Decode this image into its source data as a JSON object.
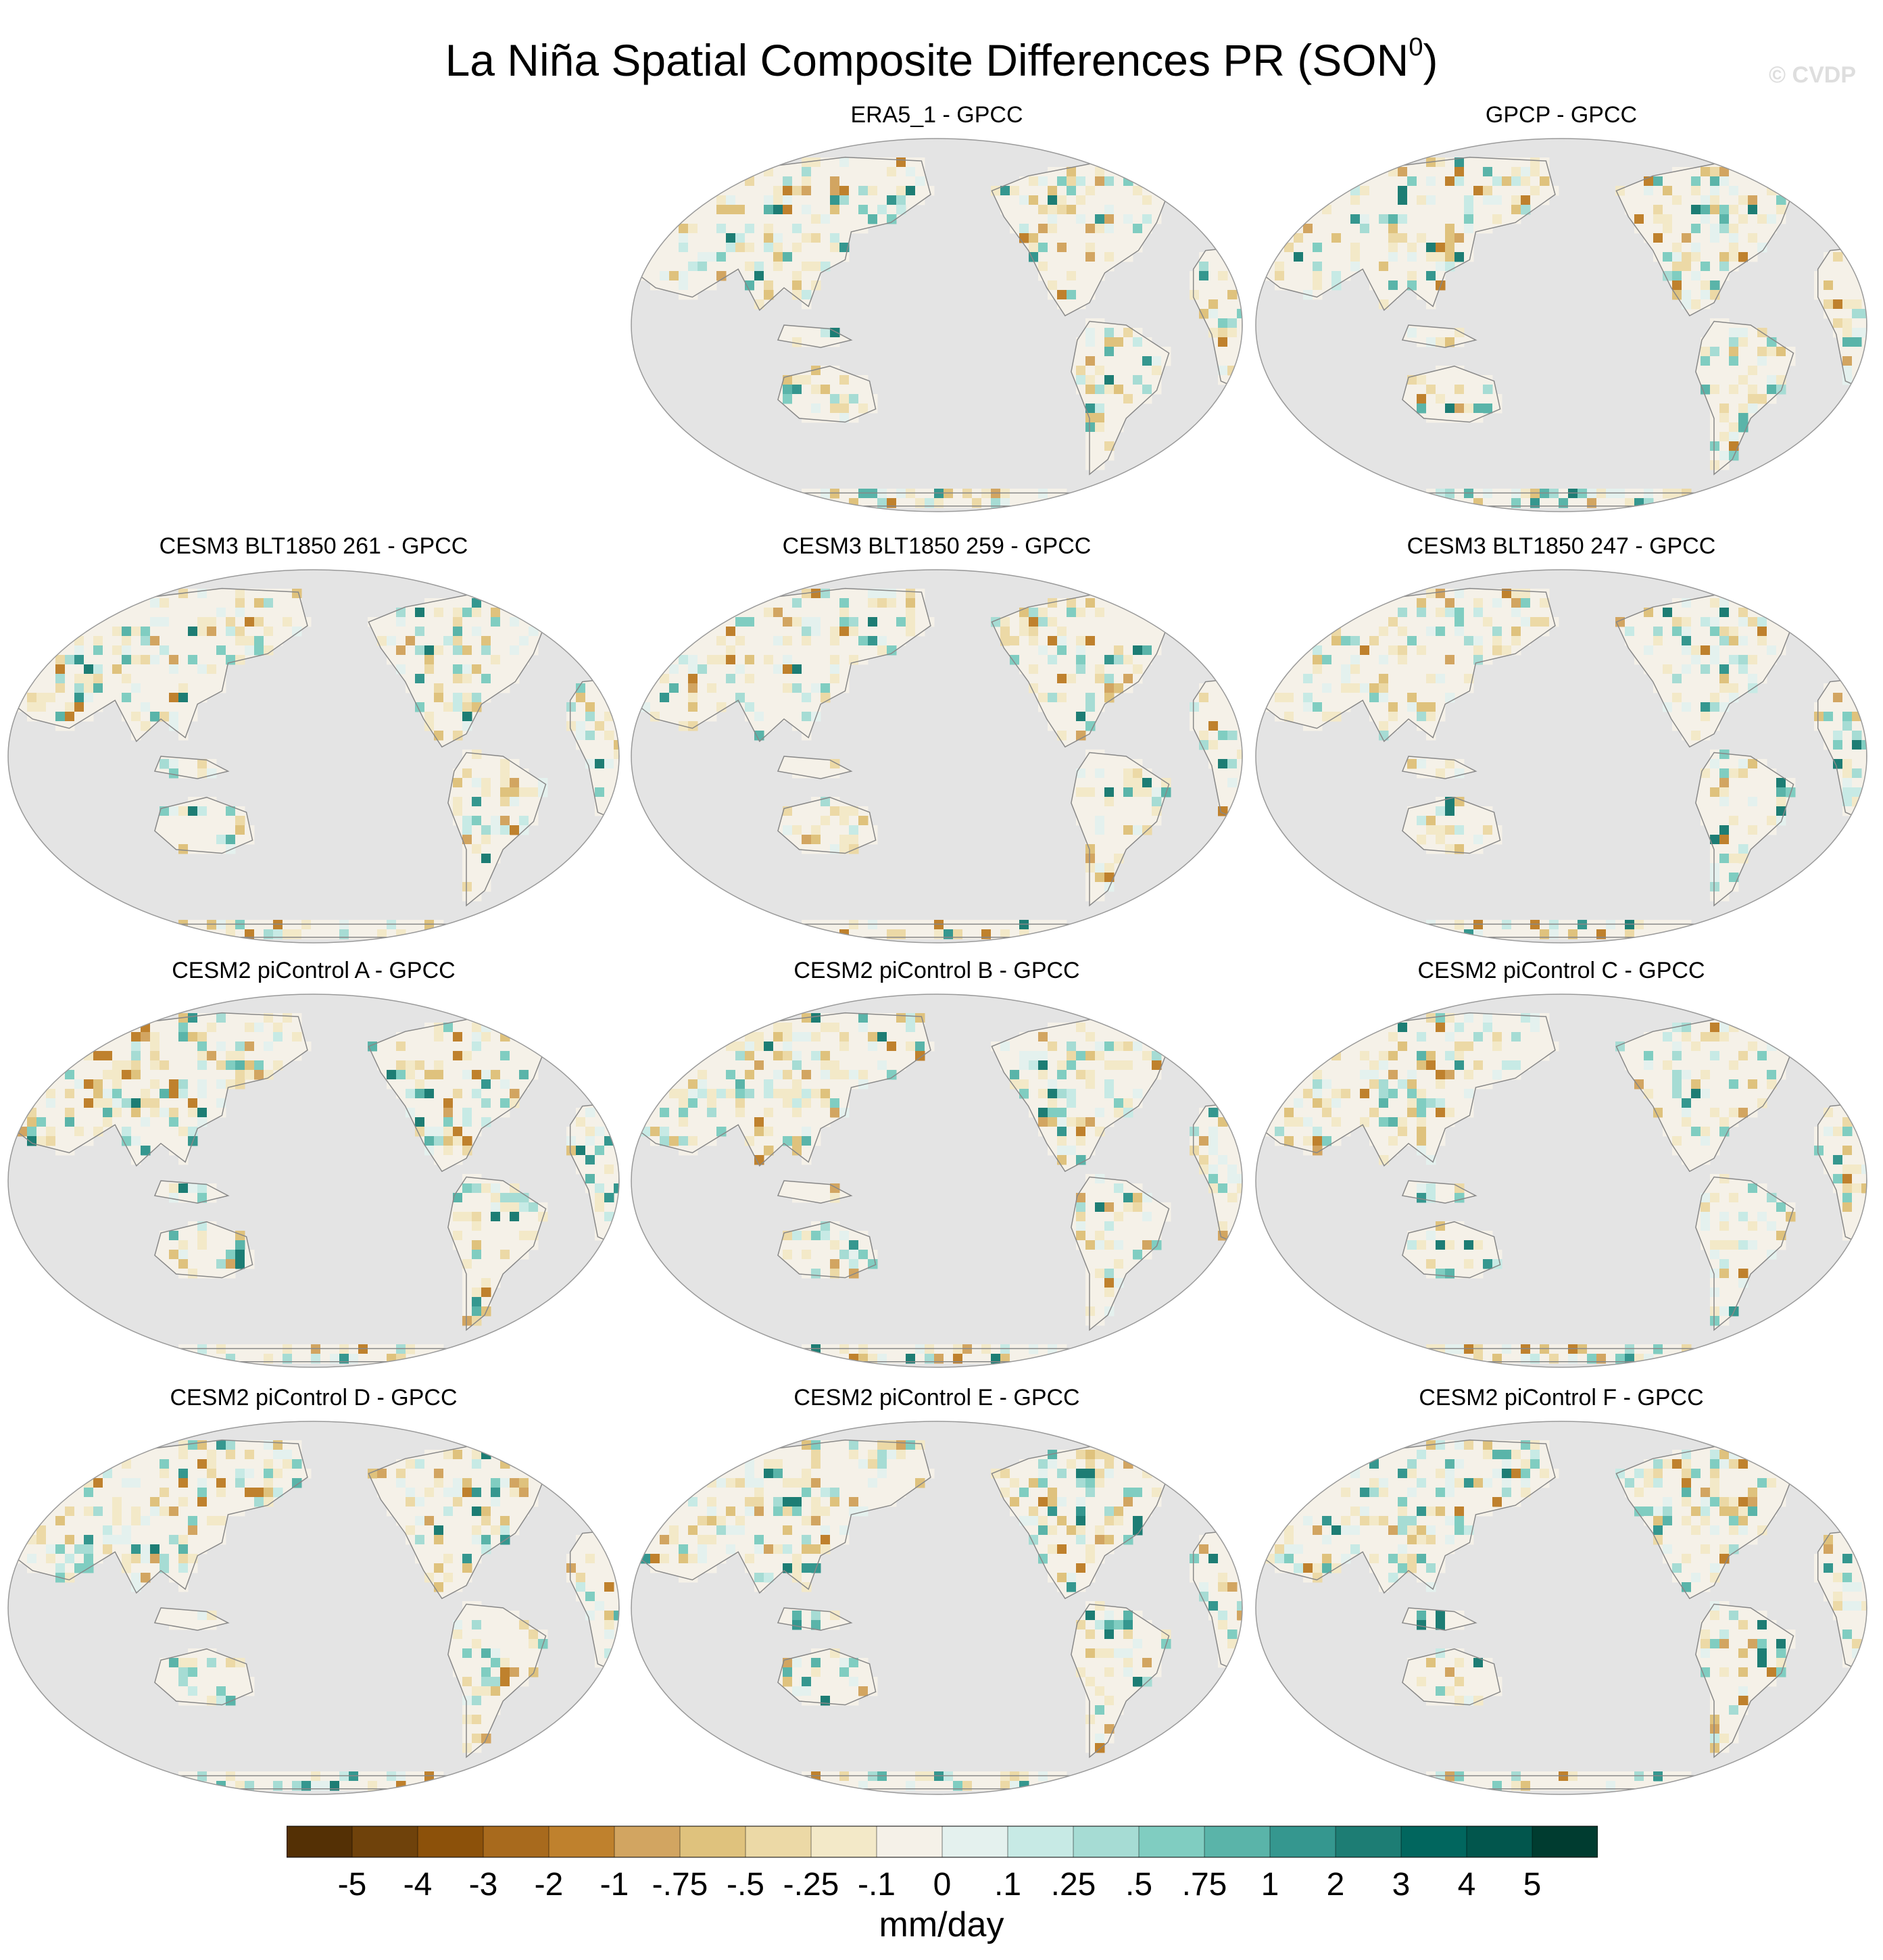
{
  "title": "La Niña Spatial Composite Differences PR (SON",
  "title_superscript": "0",
  "title_close": ")",
  "watermark": "© CVDP",
  "colorbar": {
    "label": "mm/day",
    "tick_labels": [
      "-5",
      "-4",
      "-3",
      "-2",
      "-1",
      "-.75",
      "-.5",
      "-.25",
      "-.1",
      "0",
      ".1",
      ".25",
      ".5",
      ".75",
      "1",
      "2",
      "3",
      "4",
      "5"
    ],
    "colors": [
      "#543005",
      "#6f420b",
      "#8c510a",
      "#a86a1d",
      "#bf812d",
      "#d2a561",
      "#dfc27d",
      "#ecd9a6",
      "#f3e9c8",
      "#f5f1e8",
      "#e4f1ee",
      "#c7eae5",
      "#a6dcd4",
      "#80cdc1",
      "#5ab4a9",
      "#35978f",
      "#1d7d74",
      "#01665e",
      "#02564d",
      "#003c30"
    ]
  },
  "colors": {
    "ocean": "#e4e4e4",
    "coast": "#888888"
  },
  "panels": [
    {
      "title": "ERA5_1 - GPCC"
    },
    {
      "title": "GPCP - GPCC"
    },
    {
      "title": "CESM3 BLT1850 261 - GPCC"
    },
    {
      "title": "CESM3 BLT1850 259 - GPCC"
    },
    {
      "title": "CESM3 BLT1850 247 - GPCC"
    },
    {
      "title": "CESM2 piControl A - GPCC"
    },
    {
      "title": "CESM2 piControl B - GPCC"
    },
    {
      "title": "CESM2 piControl C - GPCC"
    },
    {
      "title": "CESM2 piControl D - GPCC"
    },
    {
      "title": "CESM2 piControl E - GPCC"
    },
    {
      "title": "CESM2 piControl F - GPCC"
    }
  ]
}
